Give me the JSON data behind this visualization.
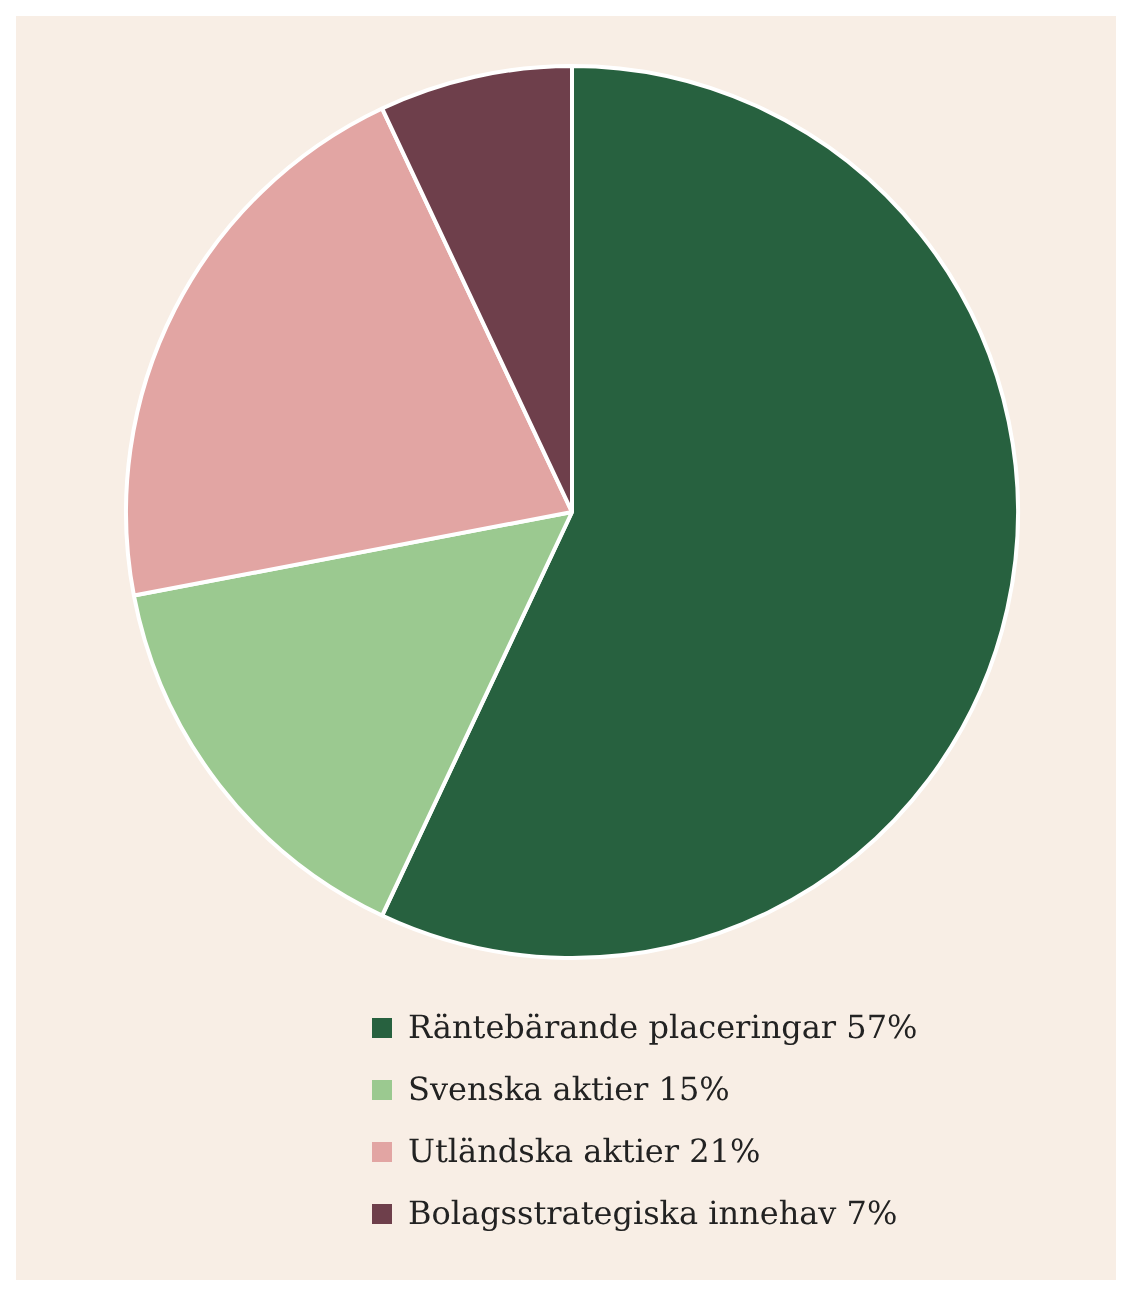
{
  "chart_data": {
    "type": "pie",
    "categories": [
      "Räntebärande placeringar 57%",
      "Svenska aktier 15%",
      "Utländska aktier 21%",
      "Bolagsstrategiska innehav 7%"
    ],
    "values": [
      57,
      15,
      21,
      7
    ],
    "colors": [
      "#27613f",
      "#9bc990",
      "#e2a5a3",
      "#6e3f4b"
    ],
    "legend": "bottom"
  }
}
